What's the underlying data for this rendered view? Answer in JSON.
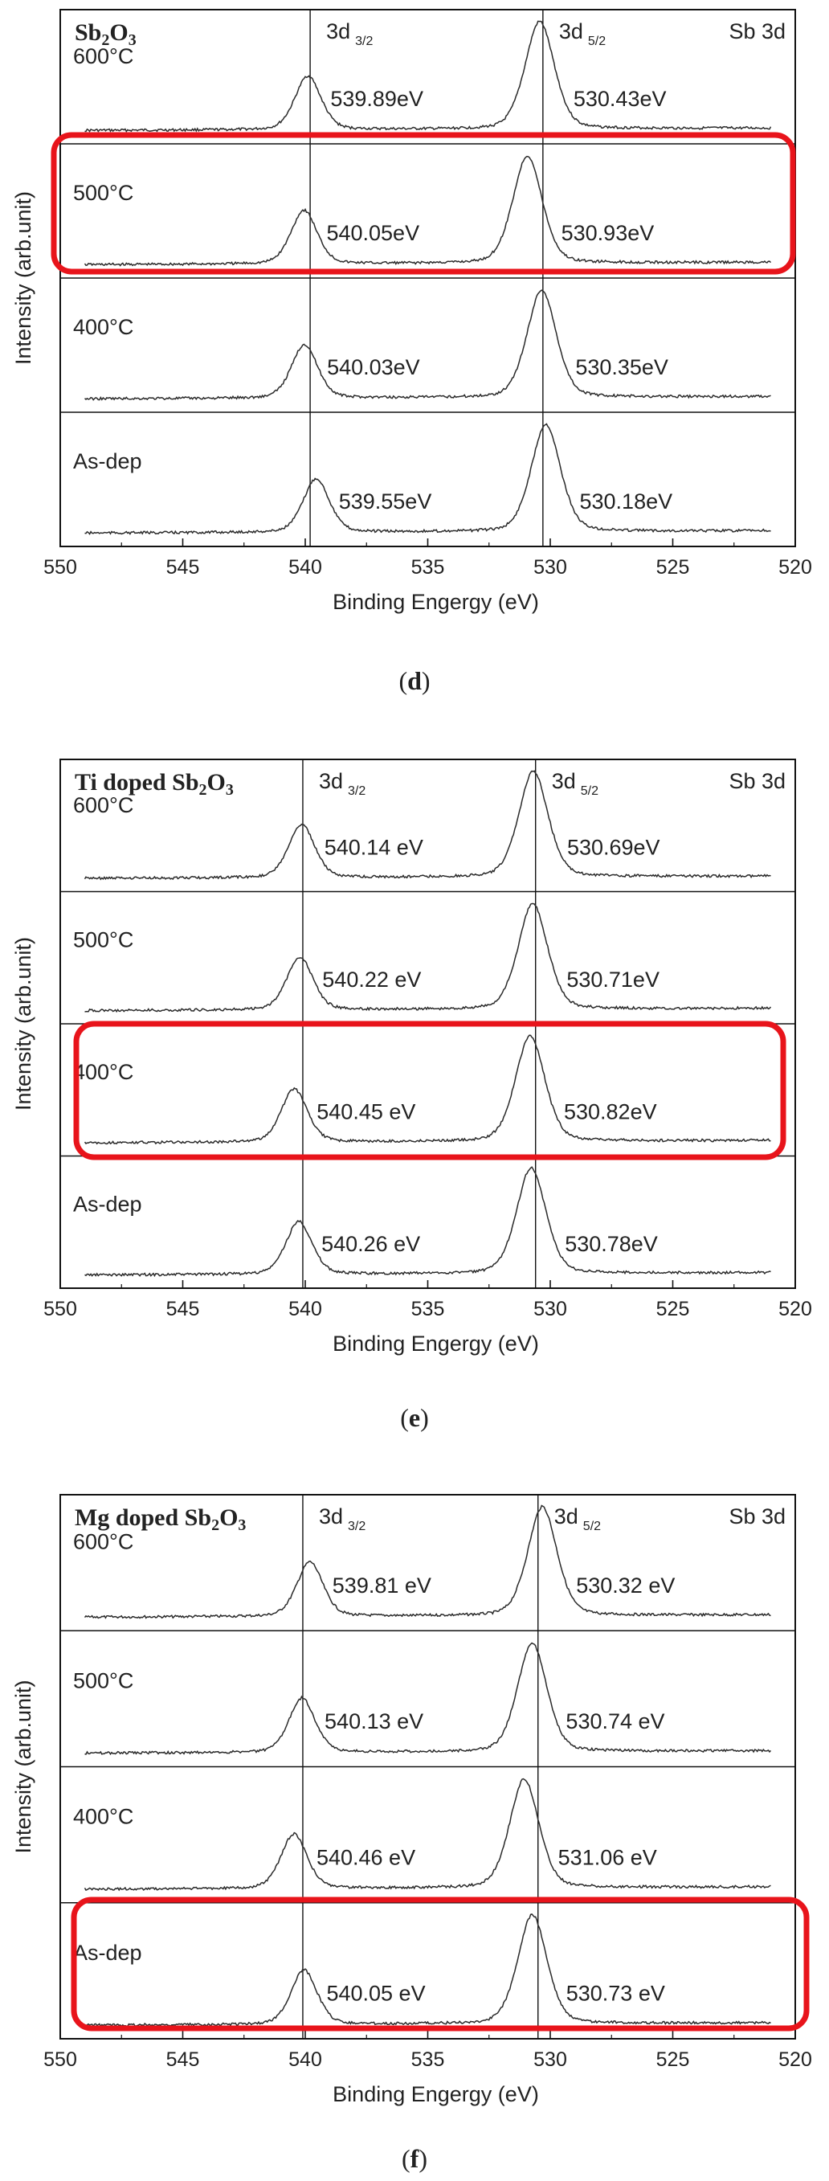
{
  "chart_data": [
    {
      "type": "line",
      "panel_label": "d",
      "title": "Sb2O3",
      "title_main": "Sb",
      "title_sub1": "2",
      "title_mid": "O",
      "title_sub2": "3",
      "core_level": "Sb 3d",
      "peak_labels": {
        "p1_main": "3d",
        "p1_sub": "3/2",
        "p2_main": "3d",
        "p2_sub": "5/2"
      },
      "xlabel": "Binding Engergy (eV)",
      "ylabel": "Intensity (arb.unit)",
      "xlim": [
        550,
        520
      ],
      "x_ticks": [
        "550",
        "545",
        "540",
        "535",
        "530",
        "525",
        "520"
      ],
      "reference_lines": [
        539.8,
        530.3
      ],
      "highlight_series": "500°C",
      "series": [
        {
          "name": "600°C",
          "peak1": 539.89,
          "peak2": 530.43,
          "label1": "539.89eV",
          "label2": "530.43eV"
        },
        {
          "name": "500°C",
          "peak1": 540.05,
          "peak2": 530.93,
          "label1": "540.05eV",
          "label2": "530.93eV"
        },
        {
          "name": "400°C",
          "peak1": 540.03,
          "peak2": 530.35,
          "label1": "540.03eV",
          "label2": "530.35eV"
        },
        {
          "name": "As-dep",
          "peak1": 539.55,
          "peak2": 530.18,
          "label1": "539.55eV",
          "label2": "530.18eV"
        }
      ]
    },
    {
      "type": "line",
      "panel_label": "e",
      "title": "Ti doped Sb2O3",
      "title_main": "Ti doped Sb",
      "title_sub1": "2",
      "title_mid": "O",
      "title_sub2": "3",
      "core_level": "Sb 3d",
      "peak_labels": {
        "p1_main": "3d",
        "p1_sub": "3/2",
        "p2_main": "3d",
        "p2_sub": "5/2"
      },
      "xlabel": "Binding Engergy (eV)",
      "ylabel": "Intensity (arb.unit)",
      "xlim": [
        550,
        520
      ],
      "x_ticks": [
        "550",
        "545",
        "540",
        "535",
        "530",
        "525",
        "520"
      ],
      "reference_lines": [
        540.1,
        530.6
      ],
      "highlight_series": "400°C",
      "series": [
        {
          "name": "600°C",
          "peak1": 540.14,
          "peak2": 530.69,
          "label1": "540.14 eV",
          "label2": "530.69eV"
        },
        {
          "name": "500°C",
          "peak1": 540.22,
          "peak2": 530.71,
          "label1": "540.22 eV",
          "label2": "530.71eV"
        },
        {
          "name": "400°C",
          "peak1": 540.45,
          "peak2": 530.82,
          "label1": "540.45 eV",
          "label2": "530.82eV"
        },
        {
          "name": "As-dep",
          "peak1": 540.26,
          "peak2": 530.78,
          "label1": "540.26 eV",
          "label2": "530.78eV"
        }
      ]
    },
    {
      "type": "line",
      "panel_label": "f",
      "title": "Mg doped Sb2O3",
      "title_main": "Mg doped Sb",
      "title_sub1": "2",
      "title_mid": "O",
      "title_sub2": "3",
      "core_level": "Sb 3d",
      "peak_labels": {
        "p1_main": "3d",
        "p1_sub": "3/2",
        "p2_main": "3d",
        "p2_sub": "5/2"
      },
      "xlabel": "Binding Engergy (eV)",
      "ylabel": "Intensity (arb.unit)",
      "xlim": [
        550,
        520
      ],
      "x_ticks": [
        "550",
        "545",
        "540",
        "535",
        "530",
        "525",
        "520"
      ],
      "reference_lines": [
        540.1,
        530.5
      ],
      "highlight_series": "400°C",
      "series": [
        {
          "name": "600°C",
          "peak1": 539.81,
          "peak2": 530.32,
          "label1": "539.81 eV",
          "label2": "530.32 eV"
        },
        {
          "name": "500°C",
          "peak1": 540.13,
          "peak2": 530.74,
          "label1": "540.13 eV",
          "label2": "530.74 eV"
        },
        {
          "name": "400°C",
          "peak1": 540.46,
          "peak2": 531.06,
          "label1": "540.46 eV",
          "label2": "531.06 eV"
        },
        {
          "name": "As-dep",
          "peak1": 540.05,
          "peak2": 530.73,
          "label1": "540.05 eV",
          "label2": "530.73 eV"
        }
      ]
    }
  ],
  "colors": {
    "axis": "#111111",
    "trace": "#2a2a2a",
    "highlight": "#e8141b"
  }
}
